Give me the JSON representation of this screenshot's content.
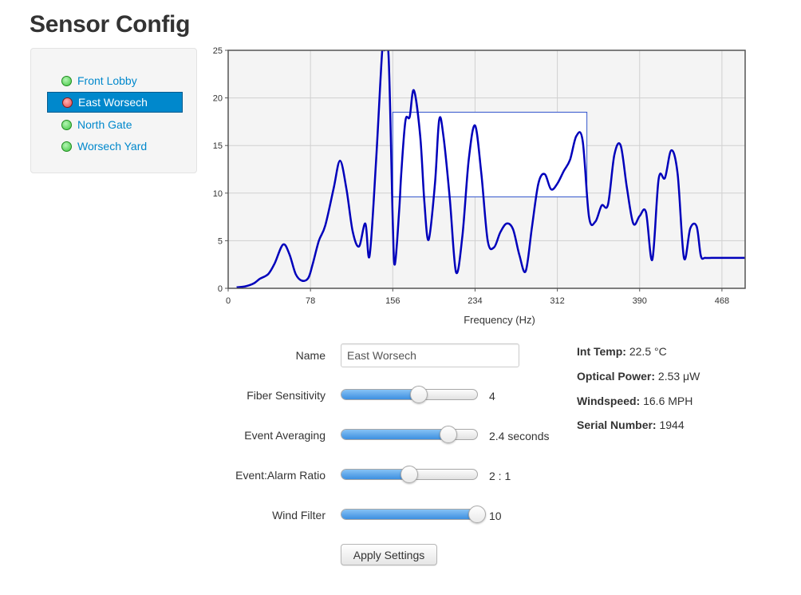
{
  "page": {
    "title": "Sensor Config"
  },
  "sensors": [
    {
      "label": "Front Lobby",
      "status": "ok",
      "active": false
    },
    {
      "label": "East Worsech",
      "status": "alarm",
      "active": true
    },
    {
      "label": "North Gate",
      "status": "ok",
      "active": false
    },
    {
      "label": "Worsech Yard",
      "status": "ok",
      "active": false
    }
  ],
  "colors": {
    "accent": "#0088cc",
    "status_ok": "#3fc63f",
    "status_alarm": "#e04848",
    "trace": "#0000bb",
    "slider_fill": "#3d8fe0"
  },
  "chart_data": {
    "type": "line",
    "title": "",
    "xlabel": "Frequency (Hz)",
    "ylabel": "",
    "xlim": [
      0,
      490
    ],
    "ylim": [
      0,
      25
    ],
    "xticks": [
      0,
      78,
      156,
      234,
      312,
      390,
      468
    ],
    "yticks": [
      0,
      5,
      10,
      15,
      20,
      25
    ],
    "grid": true,
    "series": [
      {
        "name": "",
        "x": [
          8,
          16,
          24,
          30,
          38,
          44,
          52,
          58,
          64,
          70,
          76,
          80,
          86,
          92,
          100,
          106,
          112,
          118,
          124,
          130,
          134,
          140,
          146,
          148,
          152,
          156,
          158,
          162,
          164,
          168,
          172,
          176,
          182,
          186,
          190,
          196,
          200,
          204,
          210,
          216,
          222,
          228,
          234,
          240,
          246,
          252,
          258,
          264,
          270,
          276,
          282,
          288,
          294,
          300,
          306,
          312,
          318,
          324,
          330,
          336,
          342,
          348,
          354,
          360,
          366,
          372,
          378,
          384,
          390,
          396,
          402,
          408,
          414,
          420,
          426,
          432,
          438,
          444,
          448,
          452,
          458,
          464,
          470,
          476,
          482,
          488,
          490
        ],
        "y": [
          0.1,
          0.2,
          0.5,
          1.0,
          1.5,
          2.6,
          4.6,
          3.6,
          1.5,
          0.8,
          1.1,
          2.5,
          5.0,
          6.6,
          10.5,
          13.4,
          10.5,
          6.0,
          4.4,
          6.8,
          3.4,
          13.0,
          25.0,
          25.0,
          24.5,
          7.0,
          2.5,
          8.0,
          12.0,
          17.6,
          18.0,
          20.8,
          16.0,
          9.0,
          5.1,
          11.0,
          17.7,
          16.0,
          9.5,
          1.7,
          5.5,
          13.5,
          17.1,
          12.0,
          5.0,
          4.3,
          5.9,
          6.8,
          6.2,
          3.5,
          1.8,
          6.5,
          11.0,
          12.0,
          10.4,
          11.0,
          12.3,
          13.5,
          16.0,
          15.5,
          7.5,
          7.0,
          8.7,
          8.8,
          14.0,
          15.0,
          10.5,
          6.8,
          7.6,
          8.0,
          3.0,
          11.5,
          11.6,
          14.5,
          12.0,
          3.2,
          6.3,
          6.5,
          3.4,
          3.2,
          3.2,
          3.2,
          3.2,
          3.2,
          3.2,
          3.2,
          3.2
        ]
      }
    ],
    "selection_box": {
      "x_from": 156,
      "x_to": 340,
      "y_from": 9.6,
      "y_to": 18.5
    }
  },
  "form": {
    "name_label": "Name",
    "name_value": "East Worsech",
    "sliders": [
      {
        "label": "Fiber Sensitivity",
        "value_text": "4",
        "level": 0.57
      },
      {
        "label": "Event Averaging",
        "value_text": "2.4 seconds",
        "level": 0.79
      },
      {
        "label": "Event:Alarm Ratio",
        "value_text": "2 : 1",
        "level": 0.5
      },
      {
        "label": "Wind Filter",
        "value_text": "10",
        "level": 1.0
      }
    ],
    "apply_label": "Apply Settings"
  },
  "stats": [
    {
      "label": "Int Temp:",
      "value": "22.5 °C"
    },
    {
      "label": "Optical Power:",
      "value": "2.53 μW"
    },
    {
      "label": "Windspeed:",
      "value": "16.6 MPH"
    },
    {
      "label": "Serial Number:",
      "value": "1944"
    }
  ]
}
